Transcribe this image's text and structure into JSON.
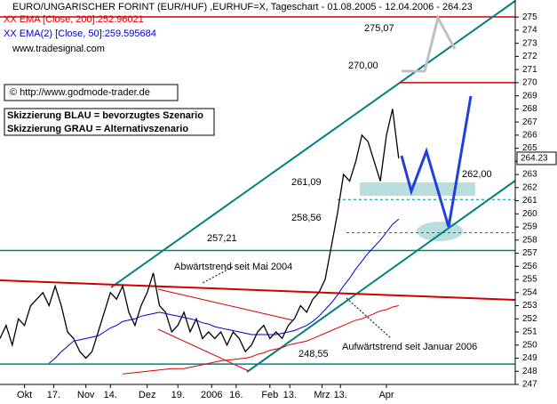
{
  "chart_data": {
    "type": "line",
    "title": "EURO/UNGARISCHER FORINT (EUR/HUF) ,EURHUF=X, Tageschart - 01.08.2005 - 12.04.2006 - 264.23",
    "source": "www.tradesignal.com",
    "copyright": "© http://www.godmode-trader.de",
    "notes": [
      "Skizzierung BLAU = bevorzugtes Szenario",
      "Skizzierung GRAU = Alternativszenario"
    ],
    "annotations": [
      "Abwärtstrend seit Mai 2004",
      "Aufwärtstrend seit Januar 2006"
    ],
    "last_price": {
      "value": 264.23,
      "label": "264.23"
    },
    "levels": [
      {
        "value": 275.07,
        "label": "275,07"
      },
      {
        "value": 270,
        "label": "270,00"
      },
      {
        "value": 262,
        "label": "262,00"
      },
      {
        "value": 261.09,
        "label": "261,09"
      },
      {
        "value": 258.56,
        "label": "258,56"
      },
      {
        "value": 257.21,
        "label": "257,21"
      },
      {
        "value": 248.55,
        "label": "248,55"
      }
    ],
    "x": [
      0,
      2,
      4,
      6,
      8,
      10,
      12,
      14,
      16,
      18,
      20,
      22,
      24,
      26,
      28,
      30,
      32,
      34,
      36,
      38,
      40,
      42,
      44,
      46,
      48,
      50,
      52,
      54,
      56,
      58,
      60,
      62,
      64,
      66,
      68,
      70,
      72,
      74,
      76,
      78,
      80,
      82,
      84,
      86,
      88,
      90,
      92,
      94,
      96,
      98,
      100,
      102,
      104,
      106,
      108,
      110,
      112,
      114,
      116,
      118,
      120,
      122,
      124,
      126,
      128,
      130
    ],
    "series": [
      {
        "name": "EURHUF=X",
        "color": "#000000",
        "values": [
          250.5,
          251.5,
          250,
          252,
          251.5,
          253,
          253.5,
          254,
          253,
          254.5,
          253,
          251,
          250.5,
          249.5,
          249,
          249.5,
          251,
          252.5,
          254,
          253.5,
          254.5,
          252.5,
          251.5,
          253,
          254,
          255.5,
          253,
          252.5,
          251,
          251.5,
          252.5,
          251,
          252,
          250.5,
          251,
          250.5,
          251,
          250,
          251,
          250.5,
          249.5,
          250,
          251,
          251.5,
          250.5,
          251,
          250.5,
          251.5,
          252,
          253,
          252.5,
          253.5,
          254,
          255,
          257.5,
          260,
          263,
          262.5,
          264,
          266,
          265.5,
          264,
          262.5,
          266,
          268,
          264.23
        ]
      },
      {
        "name": "XX EMA [Close, 200]:252.96021",
        "color": "#e00000",
        "values": [
          null,
          null,
          null,
          null,
          null,
          null,
          null,
          null,
          null,
          null,
          null,
          null,
          null,
          null,
          null,
          null,
          null,
          null,
          null,
          null,
          247.8,
          247.85,
          247.9,
          247.95,
          248,
          248.05,
          248.1,
          248.15,
          248.2,
          248.2,
          248.2,
          248.3,
          248.4,
          248.5,
          248.6,
          248.7,
          248.8,
          248.85,
          248.9,
          248.95,
          249,
          249.1,
          249.3,
          249.4,
          249.6,
          249.7,
          249.8,
          250,
          250.1,
          250.2,
          250.3,
          250.5,
          250.7,
          250.9,
          251.1,
          251.3,
          251.5,
          251.7,
          251.9,
          252,
          252.2,
          252.4,
          252.6,
          252.7,
          252.9,
          253
        ]
      },
      {
        "name": "XX EMA(2) [Close, 50]:259.595684",
        "color": "#0000cc",
        "values": [
          null,
          null,
          null,
          null,
          null,
          null,
          null,
          null,
          248.6,
          249,
          249.5,
          249.9,
          250.3,
          250.4,
          250.5,
          250.6,
          250.7,
          251,
          251.3,
          251.5,
          251.8,
          251.9,
          252,
          252.2,
          252.3,
          252.4,
          252.5,
          252.4,
          252.3,
          252.2,
          252.1,
          252,
          251.9,
          251.7,
          251.6,
          251.4,
          251.3,
          251.2,
          251.1,
          251,
          250.9,
          250.8,
          250.8,
          250.8,
          250.8,
          250.8,
          250.9,
          251,
          251.1,
          251.3,
          251.5,
          251.8,
          252.2,
          252.7,
          253.2,
          253.8,
          254.5,
          255.1,
          255.8,
          256.4,
          257,
          257.5,
          258,
          258.6,
          259.2,
          259.6
        ]
      }
    ],
    "xlim": [
      0,
      168
    ],
    "xticks": [
      {
        "value": 8,
        "label": "Okt"
      },
      {
        "value": 17.5,
        "label": "17."
      },
      {
        "value": 28,
        "label": "Nov"
      },
      {
        "value": 36,
        "label": "14."
      },
      {
        "value": 48,
        "label": "Dez"
      },
      {
        "value": 58,
        "label": "19."
      },
      {
        "value": 69,
        "label": "2006"
      },
      {
        "value": 77,
        "label": "16."
      },
      {
        "value": 88,
        "label": "Feb"
      },
      {
        "value": 94.5,
        "label": "13."
      },
      {
        "value": 105,
        "label": "Mrz"
      },
      {
        "value": 111,
        "label": "13."
      },
      {
        "value": 126,
        "label": "Apr"
      }
    ],
    "ylim": [
      247,
      276.3
    ],
    "yticks": [
      247,
      248,
      249,
      250,
      251,
      252,
      253,
      254,
      255,
      256,
      257,
      258,
      259,
      260,
      261,
      262,
      263,
      264,
      265,
      266,
      267,
      268,
      269,
      270,
      271,
      272,
      273,
      274,
      275
    ]
  }
}
